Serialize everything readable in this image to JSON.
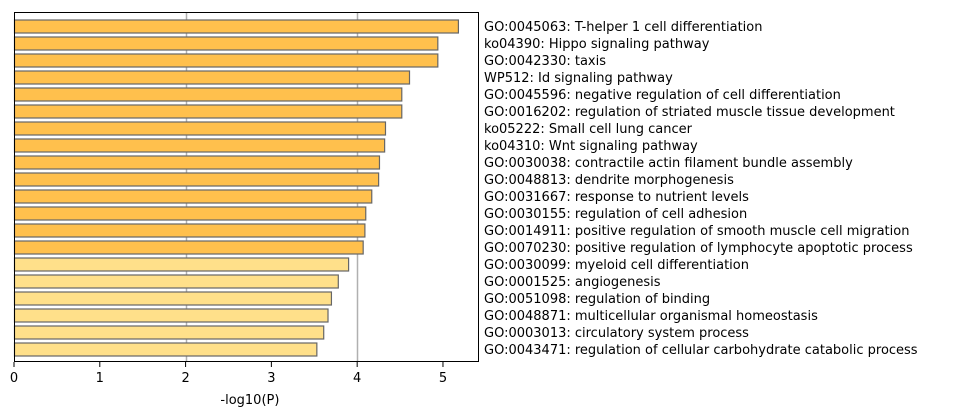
{
  "chart_data": {
    "type": "bar",
    "orientation": "horizontal",
    "xlabel": "-log10(P)",
    "xlim": [
      0,
      5.42
    ],
    "xticks": [
      0,
      1,
      2,
      3,
      4,
      5
    ],
    "grid_x": [
      2,
      4
    ],
    "colors": {
      "dark": "#ffc04d",
      "light": "#ffe08a",
      "edge": "#666666",
      "grid": "#b0b0b0"
    },
    "categories": [
      "GO:0045063: T-helper 1 cell differentiation",
      "ko04390: Hippo signaling pathway",
      "GO:0042330: taxis",
      "WP512: Id signaling pathway",
      "GO:0045596: negative regulation of cell differentiation",
      "GO:0016202: regulation of striated muscle tissue development",
      "ko05222: Small cell lung cancer",
      "ko04310: Wnt signaling pathway",
      "GO:0030038: contractile actin filament bundle assembly",
      "GO:0048813: dendrite morphogenesis",
      "GO:0031667: response to nutrient levels",
      "GO:0030155: regulation of cell adhesion",
      "GO:0014911: positive regulation of smooth muscle cell migration",
      "GO:0070230: positive regulation of lymphocyte apoptotic process",
      "GO:0030099: myeloid cell differentiation",
      "GO:0001525: angiogenesis",
      "GO:0051098: regulation of binding",
      "GO:0048871: multicellular organismal homeostasis",
      "GO:0003013: circulatory system process",
      "GO:0043471: regulation of cellular carbohydrate catabolic process"
    ],
    "values": [
      5.18,
      4.94,
      4.94,
      4.61,
      4.52,
      4.52,
      4.33,
      4.32,
      4.26,
      4.25,
      4.17,
      4.1,
      4.09,
      4.07,
      3.9,
      3.78,
      3.7,
      3.66,
      3.61,
      3.53
    ],
    "shade": [
      "dark",
      "dark",
      "dark",
      "dark",
      "dark",
      "dark",
      "dark",
      "dark",
      "dark",
      "dark",
      "dark",
      "dark",
      "dark",
      "dark",
      "light",
      "light",
      "light",
      "light",
      "light",
      "light"
    ]
  }
}
